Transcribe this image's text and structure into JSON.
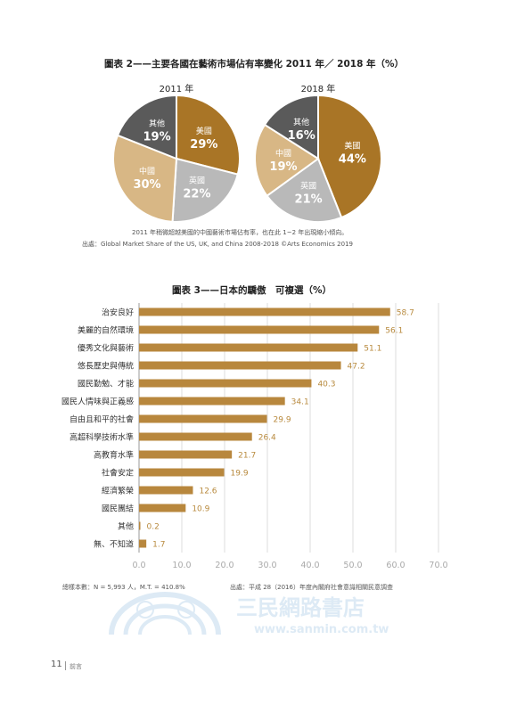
{
  "figure2": {
    "title": "圖表 2——主要各國在藝術市場佔有率變化 2011 年／ 2018 年（%）",
    "pies": [
      {
        "year": "2011 年",
        "slices": [
          {
            "label": "美國",
            "pct": "29%",
            "value": 29,
            "color": "#a97526"
          },
          {
            "label": "英國",
            "pct": "22%",
            "value": 22,
            "color": "#b9b9b9"
          },
          {
            "label": "中國",
            "pct": "30%",
            "value": 30,
            "color": "#d8b785"
          },
          {
            "label": "其他",
            "pct": "19%",
            "value": 19,
            "color": "#5a5a5a"
          }
        ]
      },
      {
        "year": "2018 年",
        "slices": [
          {
            "label": "美國",
            "pct": "44%",
            "value": 44,
            "color": "#a97526"
          },
          {
            "label": "英國",
            "pct": "21%",
            "value": 21,
            "color": "#b9b9b9"
          },
          {
            "label": "中國",
            "pct": "19%",
            "value": 19,
            "color": "#d8b785"
          },
          {
            "label": "其他",
            "pct": "16%",
            "value": 16,
            "color": "#5a5a5a"
          }
        ]
      }
    ],
    "note": "2011 年稍微超越美國的中國藝術市場佔有率，也在此 1~2 年出現縮小傾向。",
    "source": "出處：Global Market Share of the US, UK, and China 2008-2018 ©Arts Economics 2019"
  },
  "figure3": {
    "title": "圖表 3——日本的驕傲　可複選（%）",
    "footnote_left": "總樣本數：N = 5,993 人，M.T. = 410.8%",
    "footnote_right": "出處：平成 28（2016）年度內閣府社會意識相關民意調查"
  },
  "chart_data": {
    "type": "bar",
    "orientation": "horizontal",
    "title": "圖表 3——日本的驕傲　可複選（%）",
    "categories": [
      "治安良好",
      "美麗的自然環境",
      "優秀文化與藝術",
      "悠長歷史與傳統",
      "國民勤勉、才能",
      "國民人情味與正義感",
      "自由且和平的社會",
      "高超科學技術水準",
      "高教育水準",
      "社會安定",
      "經濟繁榮",
      "國民團結",
      "其他",
      "無、不知道"
    ],
    "values": [
      58.7,
      56.1,
      51.1,
      47.2,
      40.3,
      34.1,
      29.9,
      26.4,
      21.7,
      19.9,
      12.6,
      10.9,
      0.2,
      1.7
    ],
    "value_labels": [
      "58.7",
      "56.1",
      "51.1",
      "47.2",
      "40.3",
      "34.1",
      "29.9",
      "26.4",
      "21.7",
      "19.9",
      "12.6",
      "10.9",
      "0.2",
      "1.7"
    ],
    "xlim": [
      0,
      70
    ],
    "ticks": [
      "0.0",
      "10.0",
      "20.0",
      "30.0",
      "40.0",
      "50.0",
      "60.0",
      "70.0"
    ],
    "grid": true,
    "bar_color": "#b8873d"
  },
  "footer": {
    "page_number": "11",
    "section": "前言",
    "watermark": "三民網路書店 www.sanmin.com.tw"
  }
}
